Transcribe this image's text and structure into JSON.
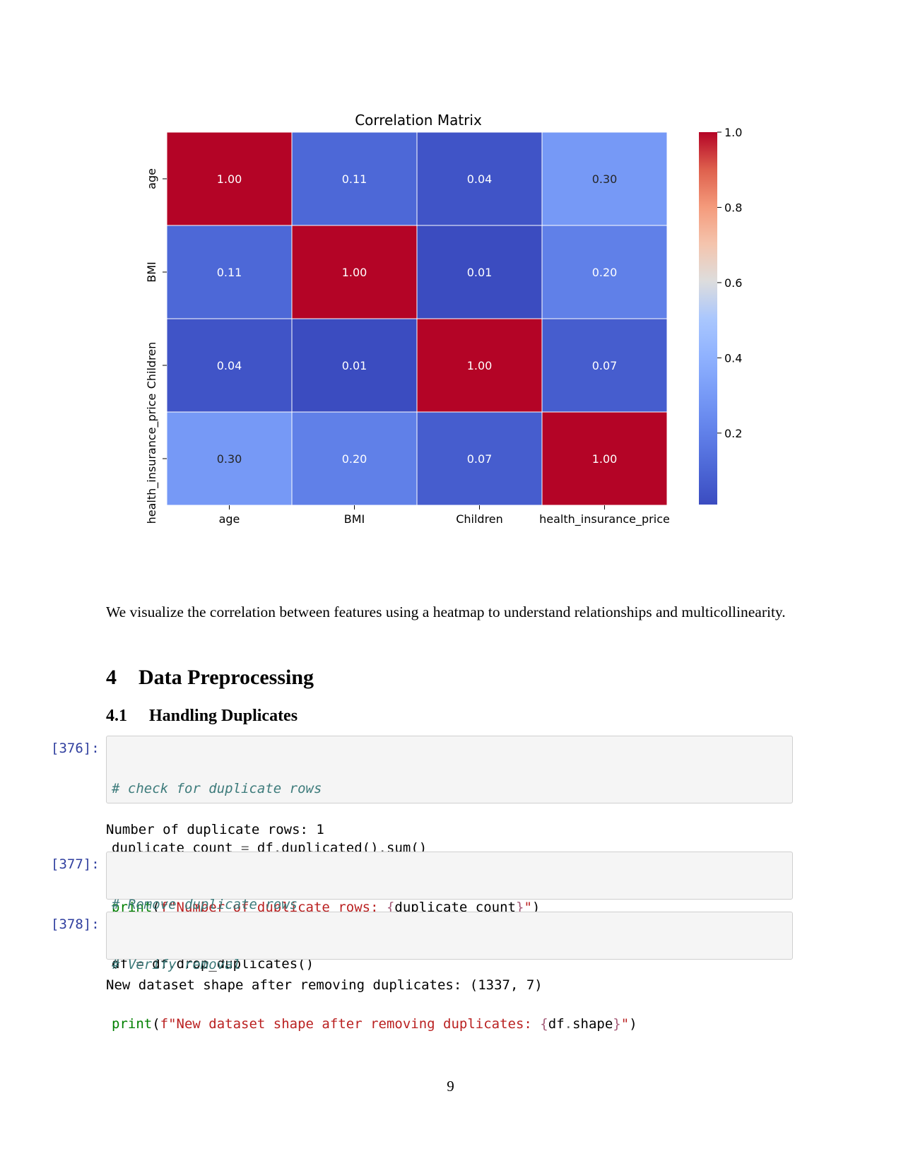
{
  "chart_data": {
    "type": "heatmap",
    "title": "Correlation Matrix",
    "labels": [
      "age",
      "BMI",
      "Children",
      "health_insurance_price"
    ],
    "values": [
      [
        1.0,
        0.11,
        0.04,
        0.3
      ],
      [
        0.11,
        1.0,
        0.01,
        0.2
      ],
      [
        0.04,
        0.01,
        1.0,
        0.07
      ],
      [
        0.3,
        0.2,
        0.07,
        1.0
      ]
    ],
    "annotations": [
      [
        "1.00",
        "0.11",
        "0.04",
        "0.30"
      ],
      [
        "0.11",
        "1.00",
        "0.01",
        "0.20"
      ],
      [
        "0.04",
        "0.01",
        "1.00",
        "0.07"
      ],
      [
        "0.30",
        "0.20",
        "0.07",
        "1.00"
      ]
    ],
    "colormap": "coolwarm",
    "vmin": 0.01,
    "vmax": 1.0,
    "colorbar_ticks": [
      {
        "value": 1.0,
        "label": "1.0"
      },
      {
        "value": 0.8,
        "label": "0.8"
      },
      {
        "value": 0.6,
        "label": "0.6"
      },
      {
        "value": 0.4,
        "label": "0.4"
      },
      {
        "value": 0.2,
        "label": "0.2"
      }
    ]
  },
  "paragraph": "We visualize the correlation between features using a heatmap to understand relationships and multicollinearity.",
  "section": {
    "number": "4",
    "title": "Data Preprocessing"
  },
  "subsection": {
    "number": "4.1",
    "title": "Handling Duplicates"
  },
  "cells": [
    {
      "prompt": "[376]:",
      "comment": "# check for duplicate rows",
      "line2": {
        "a": "duplicate_count ",
        "eq": "=",
        "b": " df",
        "dot1": ".",
        "c": "duplicated()",
        "dot2": ".",
        "d": "sum()"
      },
      "line3": {
        "fn": "print",
        "open": "(",
        "str1": "f\"Number of duplicate rows: ",
        "brace_open": "{",
        "var": "duplicate_count",
        "brace_close": "}",
        "str2": "\"",
        "close": ")"
      },
      "output": "Number of duplicate rows: 1"
    },
    {
      "prompt": "[377]:",
      "comment": "# Remove duplicate rows",
      "line2": {
        "a": "df ",
        "eq": "=",
        "b": " df",
        "dot1": ".",
        "c": "drop_duplicates()"
      }
    },
    {
      "prompt": "[378]:",
      "comment": "# Verify removal",
      "line2": {
        "fn": "print",
        "open": "(",
        "str1": "f\"New dataset shape after removing duplicates: ",
        "brace_open": "{",
        "var1": "df",
        "dot": ".",
        "var2": "shape",
        "brace_close": "}",
        "str2": "\"",
        "close": ")"
      },
      "output": "New dataset shape after removing duplicates: (1337, 7)"
    }
  ],
  "page_number": "9"
}
